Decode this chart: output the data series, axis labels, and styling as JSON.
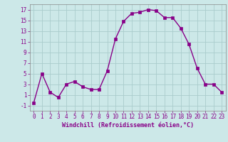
{
  "x": [
    0,
    1,
    2,
    3,
    4,
    5,
    6,
    7,
    8,
    9,
    10,
    11,
    12,
    13,
    14,
    15,
    16,
    17,
    18,
    19,
    20,
    21,
    22,
    23
  ],
  "y": [
    -0.5,
    5.0,
    1.5,
    0.5,
    3.0,
    3.5,
    2.5,
    2.0,
    2.0,
    5.5,
    11.5,
    14.8,
    16.3,
    16.5,
    17.0,
    16.8,
    15.5,
    15.5,
    13.5,
    10.5,
    6.0,
    3.0,
    3.0,
    1.5
  ],
  "line_color": "#880088",
  "marker": "s",
  "marker_size": 2.2,
  "bg_color": "#cce8e8",
  "grid_color": "#aacccc",
  "xlabel": "Windchill (Refroidissement éolien,°C)",
  "xlim": [
    -0.5,
    23.5
  ],
  "ylim": [
    -2,
    18
  ],
  "yticks": [
    -1,
    1,
    3,
    5,
    7,
    9,
    11,
    13,
    15,
    17
  ],
  "xticks": [
    0,
    1,
    2,
    3,
    4,
    5,
    6,
    7,
    8,
    9,
    10,
    11,
    12,
    13,
    14,
    15,
    16,
    17,
    18,
    19,
    20,
    21,
    22,
    23
  ],
  "tick_fontsize": 5.5,
  "xlabel_fontsize": 6.0,
  "text_color": "#880088",
  "linewidth": 1.0
}
